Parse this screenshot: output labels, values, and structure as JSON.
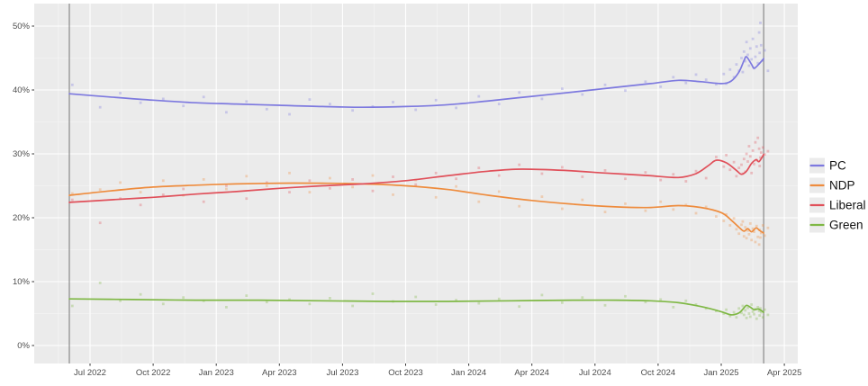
{
  "chart_data": {
    "type": "scatter+smoothed-line",
    "title": "",
    "description": "Polling percentages over time for four parties (PC, NDP, Liberal, Green), scatter of individual polls with smoothed trend lines, ggplot-style gray panel",
    "legend_position": "right",
    "panel_background": "#ebebeb",
    "grid_major_color": "#ffffff",
    "grid_minor_color": "#f7f7f7",
    "reference_line_color": "#757575",
    "axis_text_color": "#4d4d4d",
    "x_axis": {
      "domain": [
        2022.279,
        2025.303
      ],
      "ticks": [
        {
          "label": "Jul 2022",
          "value": 2022.5
        },
        {
          "label": "Oct 2022",
          "value": 2022.75
        },
        {
          "label": "Jan 2023",
          "value": 2023.0
        },
        {
          "label": "Apr 2023",
          "value": 2023.25
        },
        {
          "label": "Jul 2023",
          "value": 2023.5
        },
        {
          "label": "Oct 2023",
          "value": 2023.75
        },
        {
          "label": "Jan 2024",
          "value": 2024.0
        },
        {
          "label": "Apr 2024",
          "value": 2024.25
        },
        {
          "label": "Jul 2024",
          "value": 2024.5
        },
        {
          "label": "Oct 2024",
          "value": 2024.75
        },
        {
          "label": "Jan 2025",
          "value": 2025.0
        },
        {
          "label": "Apr 2025",
          "value": 2025.25
        }
      ],
      "minor_start": 2022.375,
      "minor_step": 0.25
    },
    "y_axis": {
      "domain": [
        -2.82,
        53.52
      ],
      "ticks": [
        {
          "label": "0%",
          "value": 0
        },
        {
          "label": "10%",
          "value": 10
        },
        {
          "label": "20%",
          "value": 20
        },
        {
          "label": "30%",
          "value": 30
        },
        {
          "label": "40%",
          "value": 40
        },
        {
          "label": "50%",
          "value": 50
        }
      ],
      "minor_values": [
        5,
        15,
        25,
        35,
        45
      ]
    },
    "reference_lines": [
      2022.418,
      2025.168
    ],
    "parties": [
      {
        "id": "pc",
        "label": "PC",
        "color": "#7d79df"
      },
      {
        "id": "ndp",
        "label": "NDP",
        "color": "#ee8c3e"
      },
      {
        "id": "lib",
        "label": "Liberal",
        "color": "#e0505a"
      },
      {
        "id": "grn",
        "label": "Green",
        "color": "#7fb845"
      }
    ],
    "trends": {
      "pc": [
        [
          2022.418,
          39.4
        ],
        [
          2022.58,
          38.9
        ],
        [
          2022.75,
          38.4
        ],
        [
          2022.92,
          38.0
        ],
        [
          2023.08,
          37.8
        ],
        [
          2023.25,
          37.6
        ],
        [
          2023.42,
          37.4
        ],
        [
          2023.58,
          37.3
        ],
        [
          2023.75,
          37.4
        ],
        [
          2023.92,
          37.7
        ],
        [
          2024.08,
          38.3
        ],
        [
          2024.25,
          39.0
        ],
        [
          2024.42,
          39.7
        ],
        [
          2024.58,
          40.4
        ],
        [
          2024.72,
          41.0
        ],
        [
          2024.83,
          41.5
        ],
        [
          2024.92,
          41.3
        ],
        [
          2025.0,
          41.0
        ],
        [
          2025.04,
          41.4
        ],
        [
          2025.07,
          42.8
        ],
        [
          2025.09,
          44.6
        ],
        [
          2025.1,
          45.2
        ],
        [
          2025.12,
          44.0
        ],
        [
          2025.13,
          43.4
        ],
        [
          2025.148,
          44.0
        ],
        [
          2025.168,
          44.9
        ]
      ],
      "ndp": [
        [
          2022.418,
          23.5
        ],
        [
          2022.58,
          24.2
        ],
        [
          2022.75,
          24.8
        ],
        [
          2022.92,
          25.1
        ],
        [
          2023.08,
          25.3
        ],
        [
          2023.25,
          25.4
        ],
        [
          2023.42,
          25.4
        ],
        [
          2023.58,
          25.3
        ],
        [
          2023.75,
          25.0
        ],
        [
          2023.92,
          24.4
        ],
        [
          2024.08,
          23.5
        ],
        [
          2024.25,
          22.7
        ],
        [
          2024.42,
          22.1
        ],
        [
          2024.58,
          21.7
        ],
        [
          2024.72,
          21.6
        ],
        [
          2024.83,
          21.9
        ],
        [
          2024.92,
          21.6
        ],
        [
          2025.0,
          20.8
        ],
        [
          2025.04,
          19.6
        ],
        [
          2025.07,
          18.5
        ],
        [
          2025.09,
          17.9
        ],
        [
          2025.105,
          18.3
        ],
        [
          2025.12,
          17.8
        ],
        [
          2025.138,
          18.4
        ],
        [
          2025.152,
          18.0
        ],
        [
          2025.168,
          17.6
        ]
      ],
      "lib": [
        [
          2022.418,
          22.4
        ],
        [
          2022.58,
          22.8
        ],
        [
          2022.75,
          23.2
        ],
        [
          2022.92,
          23.7
        ],
        [
          2023.08,
          24.1
        ],
        [
          2023.25,
          24.6
        ],
        [
          2023.42,
          25.0
        ],
        [
          2023.58,
          25.3
        ],
        [
          2023.75,
          25.8
        ],
        [
          2023.92,
          26.6
        ],
        [
          2024.08,
          27.3
        ],
        [
          2024.21,
          27.6
        ],
        [
          2024.38,
          27.4
        ],
        [
          2024.54,
          27.0
        ],
        [
          2024.71,
          26.6
        ],
        [
          2024.83,
          26.3
        ],
        [
          2024.9,
          26.9
        ],
        [
          2024.95,
          28.2
        ],
        [
          2024.98,
          29.0
        ],
        [
          2025.02,
          28.6
        ],
        [
          2025.06,
          27.4
        ],
        [
          2025.08,
          26.8
        ],
        [
          2025.1,
          27.3
        ],
        [
          2025.12,
          28.5
        ],
        [
          2025.138,
          29.1
        ],
        [
          2025.15,
          28.8
        ],
        [
          2025.168,
          29.9
        ]
      ],
      "grn": [
        [
          2022.418,
          7.3
        ],
        [
          2022.67,
          7.2
        ],
        [
          2022.92,
          7.1
        ],
        [
          2023.17,
          7.1
        ],
        [
          2023.42,
          7.0
        ],
        [
          2023.67,
          6.9
        ],
        [
          2023.92,
          6.9
        ],
        [
          2024.17,
          7.0
        ],
        [
          2024.42,
          7.1
        ],
        [
          2024.58,
          7.1
        ],
        [
          2024.72,
          7.0
        ],
        [
          2024.83,
          6.7
        ],
        [
          2024.92,
          6.1
        ],
        [
          2025.0,
          5.3
        ],
        [
          2025.04,
          4.8
        ],
        [
          2025.07,
          5.1
        ],
        [
          2025.09,
          5.9
        ],
        [
          2025.1,
          6.3
        ],
        [
          2025.115,
          6.0
        ],
        [
          2025.13,
          5.6
        ],
        [
          2025.148,
          5.7
        ],
        [
          2025.168,
          5.2
        ]
      ]
    },
    "polls_columns": [
      "date",
      "pc",
      "ndp",
      "lib",
      "grn"
    ],
    "polls": [
      [
        2022.43,
        40.8,
        23.8,
        22.8,
        6.2
      ],
      [
        2022.54,
        37.3,
        24.4,
        19.2,
        9.8
      ],
      [
        2022.62,
        39.5,
        25.5,
        23.0,
        7.0
      ],
      [
        2022.7,
        38.0,
        24.0,
        22.0,
        8.0
      ],
      [
        2022.79,
        38.6,
        25.8,
        23.6,
        6.5
      ],
      [
        2022.87,
        37.5,
        23.5,
        24.5,
        7.5
      ],
      [
        2022.95,
        38.9,
        26.0,
        22.5,
        7.0
      ],
      [
        2023.04,
        36.5,
        24.5,
        25.0,
        6.0
      ],
      [
        2023.12,
        38.2,
        26.5,
        23.0,
        7.8
      ],
      [
        2023.2,
        37.0,
        25.0,
        25.5,
        6.8
      ],
      [
        2023.29,
        36.2,
        27.0,
        24.0,
        7.2
      ],
      [
        2023.37,
        38.5,
        24.0,
        25.8,
        6.5
      ],
      [
        2023.45,
        37.8,
        26.2,
        24.6,
        7.4
      ],
      [
        2023.54,
        36.8,
        24.8,
        26.0,
        6.2
      ],
      [
        2023.62,
        37.4,
        26.6,
        24.2,
        8.1
      ],
      [
        2023.7,
        38.1,
        23.6,
        26.4,
        6.9
      ],
      [
        2023.79,
        36.9,
        25.9,
        25.2,
        7.6
      ],
      [
        2023.87,
        38.4,
        23.2,
        27.0,
        6.4
      ],
      [
        2023.95,
        37.2,
        24.9,
        26.1,
        7.1
      ],
      [
        2024.04,
        39.0,
        22.5,
        27.8,
        6.6
      ],
      [
        2024.12,
        37.8,
        24.1,
        26.6,
        7.3
      ],
      [
        2024.2,
        39.6,
        21.8,
        28.3,
        6.1
      ],
      [
        2024.29,
        38.6,
        23.3,
        26.9,
        7.9
      ],
      [
        2024.37,
        40.2,
        21.4,
        27.9,
        6.7
      ],
      [
        2024.45,
        39.3,
        22.8,
        26.4,
        7.5
      ],
      [
        2024.54,
        40.8,
        20.9,
        27.4,
        6.3
      ],
      [
        2024.62,
        39.9,
        22.2,
        26.1,
        7.7
      ],
      [
        2024.7,
        41.3,
        21.1,
        27.1,
        6.8
      ],
      [
        2024.76,
        40.5,
        22.5,
        25.9,
        7.2
      ],
      [
        2024.81,
        42.0,
        21.3,
        26.8,
        6.0
      ],
      [
        2024.86,
        41.1,
        22.0,
        25.7,
        7.0
      ],
      [
        2024.9,
        42.4,
        20.7,
        27.3,
        6.4
      ],
      [
        2024.94,
        41.6,
        21.7,
        26.2,
        5.8
      ],
      [
        2024.98,
        40.9,
        20.2,
        29.5,
        5.4
      ],
      [
        2025.01,
        42.5,
        19.5,
        28.0,
        5.0
      ],
      [
        2025.02,
        41.0,
        20.5,
        29.8,
        5.6
      ],
      [
        2025.035,
        43.2,
        18.8,
        27.5,
        4.6
      ],
      [
        2025.05,
        42.0,
        19.9,
        28.7,
        5.2
      ],
      [
        2025.06,
        44.0,
        18.2,
        26.5,
        4.4
      ],
      [
        2025.07,
        43.0,
        17.5,
        27.8,
        5.8
      ],
      [
        2025.08,
        45.0,
        18.9,
        28.3,
        5.1
      ],
      [
        2025.085,
        42.8,
        19.4,
        26.9,
        6.2
      ],
      [
        2025.09,
        46.0,
        17.1,
        29.2,
        4.8
      ],
      [
        2025.095,
        44.5,
        18.5,
        27.2,
        5.5
      ],
      [
        2025.1,
        47.5,
        16.8,
        30.0,
        4.3
      ],
      [
        2025.105,
        45.5,
        18.0,
        28.8,
        5.9
      ],
      [
        2025.11,
        43.8,
        17.4,
        31.2,
        5.0
      ],
      [
        2025.115,
        46.5,
        19.1,
        29.6,
        4.5
      ],
      [
        2025.12,
        44.8,
        16.5,
        27.0,
        6.4
      ],
      [
        2025.125,
        48.0,
        18.3,
        30.5,
        5.3
      ],
      [
        2025.13,
        43.4,
        17.8,
        28.4,
        4.9
      ],
      [
        2025.135,
        45.2,
        16.2,
        31.8,
        5.7
      ],
      [
        2025.14,
        46.8,
        18.7,
        29.0,
        4.2
      ],
      [
        2025.145,
        44.2,
        17.0,
        32.5,
        6.0
      ],
      [
        2025.15,
        49.0,
        15.8,
        30.8,
        5.4
      ],
      [
        2025.152,
        45.8,
        18.1,
        28.1,
        4.7
      ],
      [
        2025.155,
        50.5,
        16.9,
        29.4,
        5.8
      ],
      [
        2025.158,
        47.0,
        17.6,
        30.2,
        5.2
      ],
      [
        2025.165,
        44.6,
        18.8,
        31.0,
        4.4
      ],
      [
        2025.172,
        46.2,
        17.2,
        29.9,
        5.6
      ],
      [
        2025.185,
        43.0,
        18.4,
        30.4,
        4.8
      ]
    ]
  }
}
